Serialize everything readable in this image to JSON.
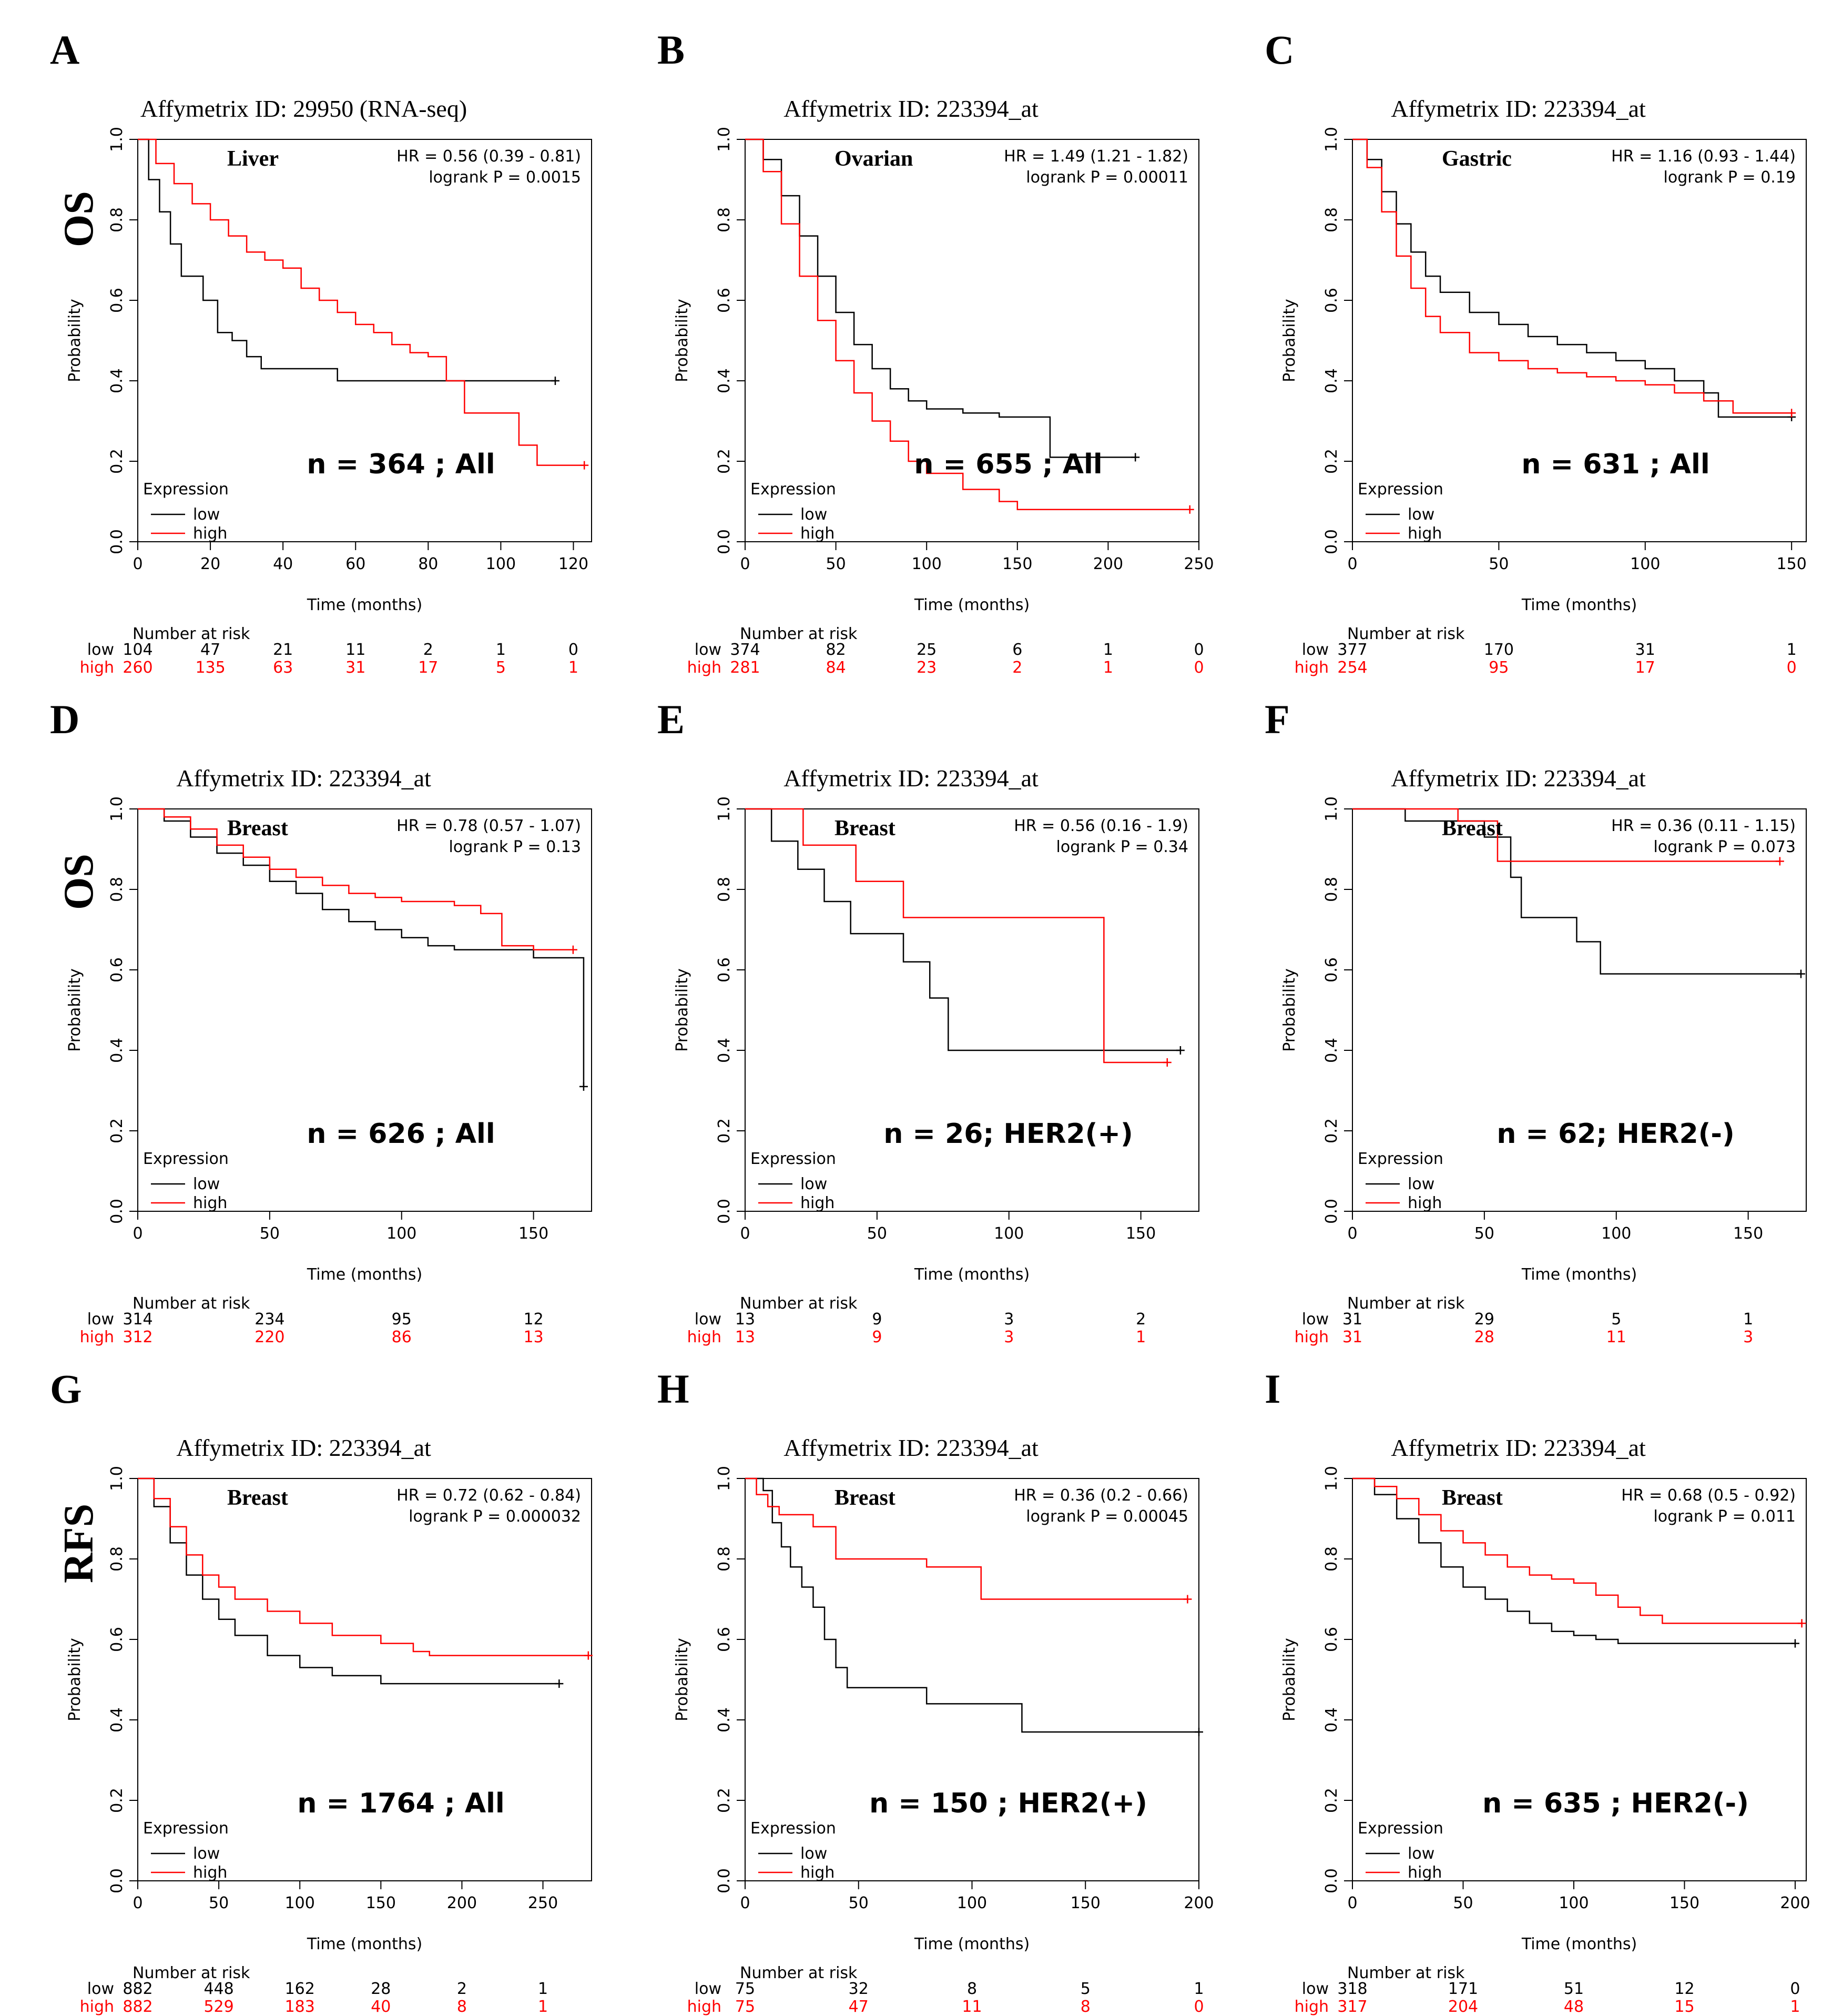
{
  "colors": {
    "low": "#000000",
    "high": "#ff0000"
  },
  "row_labels": [
    "OS",
    "OS",
    "RFS"
  ],
  "common": {
    "ylabel": "Probability",
    "xlabel": "Time (months)",
    "legend_title": "Expression",
    "legend_low": "low",
    "legend_high": "high",
    "risk_header": "Number at risk",
    "risk_low_label": "low",
    "risk_high_label": "high"
  },
  "chart_data": [
    {
      "type": "line",
      "panel": "A",
      "title": "Affymetrix ID: 29950 (RNA-seq)",
      "tissue": "Liver",
      "hr": "HR = 0.56 (0.39 - 0.81)",
      "logrank": "logrank P = 0.0015",
      "n_label": "n = 364 ; All",
      "xlim": [
        0,
        125
      ],
      "ylim": [
        0,
        1
      ],
      "xticks": [
        0,
        20,
        40,
        60,
        80,
        100,
        120
      ],
      "yticks": [
        0.0,
        0.2,
        0.4,
        0.6,
        0.8,
        1.0
      ],
      "series": [
        {
          "name": "low",
          "x": [
            0,
            3,
            6,
            9,
            12,
            15,
            18,
            22,
            26,
            30,
            34,
            40,
            55,
            85,
            115
          ],
          "y": [
            1.0,
            0.9,
            0.82,
            0.74,
            0.66,
            0.66,
            0.6,
            0.52,
            0.5,
            0.46,
            0.43,
            0.43,
            0.4,
            0.4,
            0.4
          ]
        },
        {
          "name": "high",
          "x": [
            0,
            5,
            10,
            15,
            20,
            25,
            30,
            35,
            40,
            45,
            50,
            55,
            60,
            65,
            70,
            75,
            80,
            85,
            90,
            100,
            105,
            110,
            123
          ],
          "y": [
            1.0,
            0.94,
            0.89,
            0.84,
            0.8,
            0.76,
            0.72,
            0.7,
            0.68,
            0.63,
            0.6,
            0.57,
            0.54,
            0.52,
            0.49,
            0.47,
            0.46,
            0.4,
            0.32,
            0.32,
            0.24,
            0.19,
            0.19
          ]
        }
      ],
      "risk_times": [
        0,
        20,
        40,
        60,
        80,
        100,
        120
      ],
      "risk_low": [
        104,
        47,
        21,
        11,
        2,
        1,
        0
      ],
      "risk_high": [
        260,
        135,
        63,
        31,
        17,
        5,
        1
      ]
    },
    {
      "type": "line",
      "panel": "B",
      "title": "Affymetrix ID: 223394_at",
      "tissue": "Ovarian",
      "hr": "HR = 1.49 (1.21 - 1.82)",
      "logrank": "logrank P = 0.00011",
      "n_label": "n = 655 ; All",
      "xlim": [
        0,
        250
      ],
      "ylim": [
        0,
        1
      ],
      "xticks": [
        0,
        50,
        100,
        150,
        200,
        250
      ],
      "yticks": [
        0.0,
        0.2,
        0.4,
        0.6,
        0.8,
        1.0
      ],
      "series": [
        {
          "name": "low",
          "x": [
            0,
            10,
            20,
            30,
            40,
            50,
            60,
            70,
            80,
            90,
            100,
            120,
            140,
            168,
            215
          ],
          "y": [
            1.0,
            0.95,
            0.86,
            0.76,
            0.66,
            0.57,
            0.49,
            0.43,
            0.38,
            0.35,
            0.33,
            0.32,
            0.31,
            0.21,
            0.21
          ]
        },
        {
          "name": "high",
          "x": [
            0,
            10,
            20,
            30,
            40,
            50,
            60,
            70,
            80,
            90,
            100,
            120,
            140,
            150,
            245
          ],
          "y": [
            1.0,
            0.92,
            0.79,
            0.66,
            0.55,
            0.45,
            0.37,
            0.3,
            0.25,
            0.2,
            0.17,
            0.13,
            0.1,
            0.08,
            0.08
          ]
        }
      ],
      "risk_times": [
        0,
        50,
        100,
        150,
        200,
        250
      ],
      "risk_low": [
        374,
        82,
        25,
        6,
        1,
        0
      ],
      "risk_high": [
        281,
        84,
        23,
        2,
        1,
        0
      ]
    },
    {
      "type": "line",
      "panel": "C",
      "title": "Affymetrix ID: 223394_at",
      "tissue": "Gastric",
      "hr": "HR = 1.16 (0.93 - 1.44)",
      "logrank": "logrank P = 0.19",
      "n_label": "n = 631 ; All",
      "xlim": [
        0,
        155
      ],
      "ylim": [
        0,
        1
      ],
      "xticks": [
        0,
        50,
        100,
        150
      ],
      "yticks": [
        0.0,
        0.2,
        0.4,
        0.6,
        0.8,
        1.0
      ],
      "series": [
        {
          "name": "low",
          "x": [
            0,
            5,
            10,
            15,
            20,
            25,
            30,
            40,
            50,
            60,
            70,
            80,
            90,
            100,
            110,
            120,
            125,
            150
          ],
          "y": [
            1.0,
            0.95,
            0.87,
            0.79,
            0.72,
            0.66,
            0.62,
            0.57,
            0.54,
            0.51,
            0.49,
            0.47,
            0.45,
            0.43,
            0.4,
            0.37,
            0.31,
            0.31
          ]
        },
        {
          "name": "high",
          "x": [
            0,
            5,
            10,
            15,
            20,
            25,
            30,
            40,
            50,
            60,
            70,
            80,
            90,
            100,
            110,
            120,
            130,
            150
          ],
          "y": [
            1.0,
            0.93,
            0.82,
            0.71,
            0.63,
            0.56,
            0.52,
            0.47,
            0.45,
            0.43,
            0.42,
            0.41,
            0.4,
            0.39,
            0.37,
            0.35,
            0.32,
            0.32
          ]
        }
      ],
      "risk_times": [
        0,
        50,
        100,
        150
      ],
      "risk_low": [
        377,
        170,
        31,
        1
      ],
      "risk_high": [
        254,
        95,
        17,
        0
      ]
    },
    {
      "type": "line",
      "panel": "D",
      "title": "Affymetrix ID: 223394_at",
      "tissue": "Breast",
      "hr": "HR = 0.78 (0.57 - 1.07)",
      "logrank": "logrank P = 0.13",
      "n_label": "n = 626 ; All",
      "xlim": [
        0,
        172
      ],
      "ylim": [
        0,
        1
      ],
      "xticks": [
        0,
        50,
        100,
        150
      ],
      "yticks": [
        0.0,
        0.2,
        0.4,
        0.6,
        0.8,
        1.0
      ],
      "series": [
        {
          "name": "low",
          "x": [
            0,
            10,
            20,
            30,
            40,
            50,
            60,
            70,
            80,
            90,
            100,
            110,
            120,
            135,
            150,
            169,
            169
          ],
          "y": [
            1.0,
            0.97,
            0.93,
            0.89,
            0.86,
            0.82,
            0.79,
            0.75,
            0.72,
            0.7,
            0.68,
            0.66,
            0.65,
            0.65,
            0.63,
            0.63,
            0.31
          ]
        },
        {
          "name": "high",
          "x": [
            0,
            10,
            20,
            30,
            40,
            50,
            60,
            70,
            80,
            90,
            100,
            110,
            120,
            130,
            138,
            150,
            165
          ],
          "y": [
            1.0,
            0.98,
            0.95,
            0.91,
            0.88,
            0.85,
            0.83,
            0.81,
            0.79,
            0.78,
            0.77,
            0.77,
            0.76,
            0.74,
            0.66,
            0.65,
            0.65
          ]
        }
      ],
      "risk_times": [
        0,
        50,
        100,
        150
      ],
      "risk_low": [
        314,
        234,
        95,
        12
      ],
      "risk_high": [
        312,
        220,
        86,
        13
      ]
    },
    {
      "type": "line",
      "panel": "E",
      "title": "Affymetrix ID: 223394_at",
      "tissue": "Breast",
      "hr": "HR = 0.56 (0.16 - 1.9)",
      "logrank": "logrank P = 0.34",
      "n_label": "n = 26; HER2(+)",
      "xlim": [
        0,
        172
      ],
      "ylim": [
        0,
        1
      ],
      "xticks": [
        0,
        50,
        100,
        150
      ],
      "yticks": [
        0.0,
        0.2,
        0.4,
        0.6,
        0.8,
        1.0
      ],
      "series": [
        {
          "name": "low",
          "x": [
            0,
            10,
            10,
            20,
            20,
            30,
            30,
            40,
            40,
            60,
            60,
            70,
            70,
            77,
            77,
            100,
            165
          ],
          "y": [
            1.0,
            1.0,
            0.92,
            0.92,
            0.85,
            0.85,
            0.77,
            0.77,
            0.69,
            0.69,
            0.62,
            0.62,
            0.53,
            0.53,
            0.4,
            0.4,
            0.4
          ]
        },
        {
          "name": "high",
          "x": [
            0,
            22,
            22,
            42,
            42,
            60,
            60,
            136,
            136,
            160
          ],
          "y": [
            1.0,
            1.0,
            0.91,
            0.91,
            0.82,
            0.82,
            0.73,
            0.73,
            0.37,
            0.37
          ]
        }
      ],
      "risk_times": [
        0,
        50,
        100,
        150
      ],
      "risk_low": [
        13,
        9,
        3,
        2
      ],
      "risk_high": [
        13,
        9,
        3,
        1
      ]
    },
    {
      "type": "line",
      "panel": "F",
      "title": "Affymetrix ID: 223394_at",
      "tissue": "Breast",
      "hr": "HR = 0.36 (0.11 - 1.15)",
      "logrank": "logrank P = 0.073",
      "n_label": "n = 62; HER2(-)",
      "xlim": [
        0,
        172
      ],
      "ylim": [
        0,
        1
      ],
      "xticks": [
        0,
        50,
        100,
        150
      ],
      "yticks": [
        0.0,
        0.2,
        0.4,
        0.6,
        0.8,
        1.0
      ],
      "series": [
        {
          "name": "low",
          "x": [
            0,
            20,
            20,
            50,
            50,
            60,
            60,
            64,
            64,
            85,
            85,
            94,
            94,
            170
          ],
          "y": [
            1.0,
            1.0,
            0.97,
            0.97,
            0.93,
            0.93,
            0.83,
            0.83,
            0.73,
            0.73,
            0.67,
            0.67,
            0.59,
            0.59
          ]
        },
        {
          "name": "high",
          "x": [
            0,
            40,
            40,
            55,
            55,
            162
          ],
          "y": [
            1.0,
            1.0,
            0.97,
            0.97,
            0.87,
            0.87
          ]
        }
      ],
      "risk_times": [
        0,
        50,
        100,
        150
      ],
      "risk_low": [
        31,
        29,
        5,
        1
      ],
      "risk_high": [
        31,
        28,
        11,
        3
      ]
    },
    {
      "type": "line",
      "panel": "G",
      "title": "Affymetrix ID: 223394_at",
      "tissue": "Breast",
      "hr": "HR = 0.72 (0.62 - 0.84)",
      "logrank": "logrank P = 0.000032",
      "n_label": "n = 1764 ; All",
      "xlim": [
        0,
        280
      ],
      "ylim": [
        0,
        1
      ],
      "xticks": [
        0,
        50,
        100,
        150,
        200,
        250
      ],
      "yticks": [
        0.0,
        0.2,
        0.4,
        0.6,
        0.8,
        1.0
      ],
      "series": [
        {
          "name": "low",
          "x": [
            0,
            10,
            20,
            30,
            40,
            50,
            60,
            80,
            100,
            120,
            150,
            180,
            260
          ],
          "y": [
            1.0,
            0.93,
            0.84,
            0.76,
            0.7,
            0.65,
            0.61,
            0.56,
            0.53,
            0.51,
            0.49,
            0.49,
            0.49
          ]
        },
        {
          "name": "high",
          "x": [
            0,
            10,
            20,
            30,
            40,
            50,
            60,
            80,
            100,
            120,
            150,
            170,
            180,
            278
          ],
          "y": [
            1.0,
            0.95,
            0.88,
            0.81,
            0.76,
            0.73,
            0.7,
            0.67,
            0.64,
            0.61,
            0.59,
            0.57,
            0.56,
            0.56
          ]
        }
      ],
      "risk_times": [
        0,
        50,
        100,
        150,
        200,
        250
      ],
      "risk_low": [
        882,
        448,
        162,
        28,
        2,
        1
      ],
      "risk_high": [
        882,
        529,
        183,
        40,
        8,
        1
      ]
    },
    {
      "type": "line",
      "panel": "H",
      "title": "Affymetrix ID: 223394_at",
      "tissue": "Breast",
      "hr": "HR = 0.36 (0.2 - 0.66)",
      "logrank": "logrank P = 0.00045",
      "n_label": "n = 150 ; HER2(+)",
      "xlim": [
        0,
        200
      ],
      "ylim": [
        0,
        1
      ],
      "xticks": [
        0,
        50,
        100,
        150,
        200
      ],
      "yticks": [
        0.0,
        0.2,
        0.4,
        0.6,
        0.8,
        1.0
      ],
      "series": [
        {
          "name": "low",
          "x": [
            0,
            8,
            12,
            16,
            20,
            25,
            30,
            35,
            40,
            45,
            55,
            80,
            122,
            122,
            200
          ],
          "y": [
            1.0,
            0.97,
            0.89,
            0.83,
            0.78,
            0.73,
            0.68,
            0.6,
            0.53,
            0.48,
            0.48,
            0.44,
            0.44,
            0.37,
            0.37
          ]
        },
        {
          "name": "high",
          "x": [
            0,
            5,
            10,
            15,
            20,
            30,
            40,
            60,
            80,
            104,
            104,
            195
          ],
          "y": [
            1.0,
            0.96,
            0.93,
            0.91,
            0.91,
            0.88,
            0.8,
            0.8,
            0.78,
            0.78,
            0.7,
            0.7
          ]
        }
      ],
      "risk_times": [
        0,
        50,
        100,
        150,
        200
      ],
      "risk_low": [
        75,
        32,
        8,
        5,
        1
      ],
      "risk_high": [
        75,
        47,
        11,
        8,
        0
      ]
    },
    {
      "type": "line",
      "panel": "I",
      "title": "Affymetrix ID: 223394_at",
      "tissue": "Breast",
      "hr": "HR = 0.68 (0.5 - 0.92)",
      "logrank": "logrank P = 0.011",
      "n_label": "n = 635 ; HER2(-)",
      "xlim": [
        0,
        205
      ],
      "ylim": [
        0,
        1
      ],
      "xticks": [
        0,
        50,
        100,
        150,
        200
      ],
      "yticks": [
        0.0,
        0.2,
        0.4,
        0.6,
        0.8,
        1.0
      ],
      "series": [
        {
          "name": "low",
          "x": [
            0,
            10,
            20,
            30,
            40,
            50,
            60,
            70,
            80,
            90,
            100,
            110,
            120,
            200
          ],
          "y": [
            1.0,
            0.96,
            0.9,
            0.84,
            0.78,
            0.73,
            0.7,
            0.67,
            0.64,
            0.62,
            0.61,
            0.6,
            0.59,
            0.59
          ]
        },
        {
          "name": "high",
          "x": [
            0,
            10,
            20,
            30,
            40,
            50,
            60,
            70,
            80,
            90,
            100,
            110,
            120,
            130,
            140,
            203
          ],
          "y": [
            1.0,
            0.98,
            0.95,
            0.91,
            0.87,
            0.84,
            0.81,
            0.78,
            0.76,
            0.75,
            0.74,
            0.71,
            0.68,
            0.66,
            0.64,
            0.64
          ]
        }
      ],
      "risk_times": [
        0,
        50,
        100,
        150,
        200
      ],
      "risk_low": [
        318,
        171,
        51,
        12,
        0
      ],
      "risk_high": [
        317,
        204,
        48,
        15,
        1
      ]
    }
  ]
}
